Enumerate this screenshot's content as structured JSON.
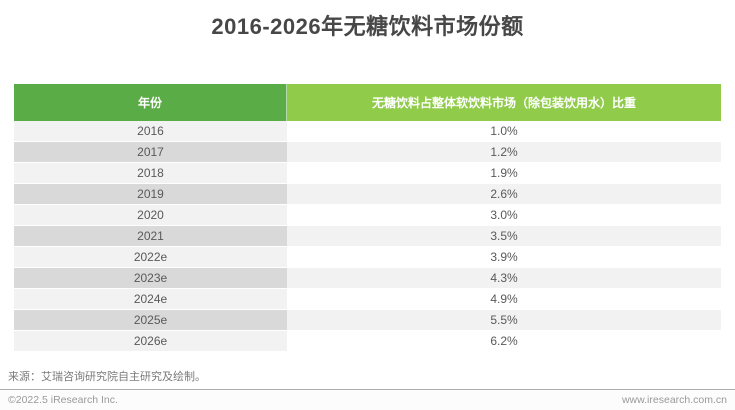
{
  "title": "2016-2026年无糖饮料市场份额",
  "table": {
    "columns": [
      "年份",
      "无糖饮料占整体软饮料市场（除包装饮用水）比重"
    ],
    "rows": [
      {
        "year": "2016",
        "share": "1.0%"
      },
      {
        "year": "2017",
        "share": "1.2%"
      },
      {
        "year": "2018",
        "share": "1.9%"
      },
      {
        "year": "2019",
        "share": "2.6%"
      },
      {
        "year": "2020",
        "share": "3.0%"
      },
      {
        "year": "2021",
        "share": "3.5%"
      },
      {
        "year": "2022e",
        "share": "3.9%"
      },
      {
        "year": "2023e",
        "share": "4.3%"
      },
      {
        "year": "2024e",
        "share": "4.9%"
      },
      {
        "year": "2025e",
        "share": "5.5%"
      },
      {
        "year": "2026e",
        "share": "6.2%"
      }
    ]
  },
  "source_note": "来源：艾瑞咨询研究院自主研究及绘制。",
  "footer": {
    "copyright": "©2022.5 iResearch Inc.",
    "website": "www.iresearch.com.cn"
  },
  "colors": {
    "title_text": "#474747",
    "header_left_bg": "#5aad46",
    "header_right_bg": "#90cc4a",
    "row_light_left": "#f2f2f2",
    "row_light_right": "#ffffff",
    "row_dark_left": "#d9d9d9",
    "row_dark_right": "#f2f2f2"
  },
  "chart_data": {
    "type": "table",
    "title": "2016-2026年无糖饮料市场份额",
    "categories": [
      "2016",
      "2017",
      "2018",
      "2019",
      "2020",
      "2021",
      "2022e",
      "2023e",
      "2024e",
      "2025e",
      "2026e"
    ],
    "series": [
      {
        "name": "无糖饮料占整体软饮料市场（除包装饮用水）比重",
        "values": [
          1.0,
          1.2,
          1.9,
          2.6,
          3.0,
          3.5,
          3.9,
          4.3,
          4.9,
          5.5,
          6.2
        ]
      }
    ],
    "unit": "%"
  }
}
